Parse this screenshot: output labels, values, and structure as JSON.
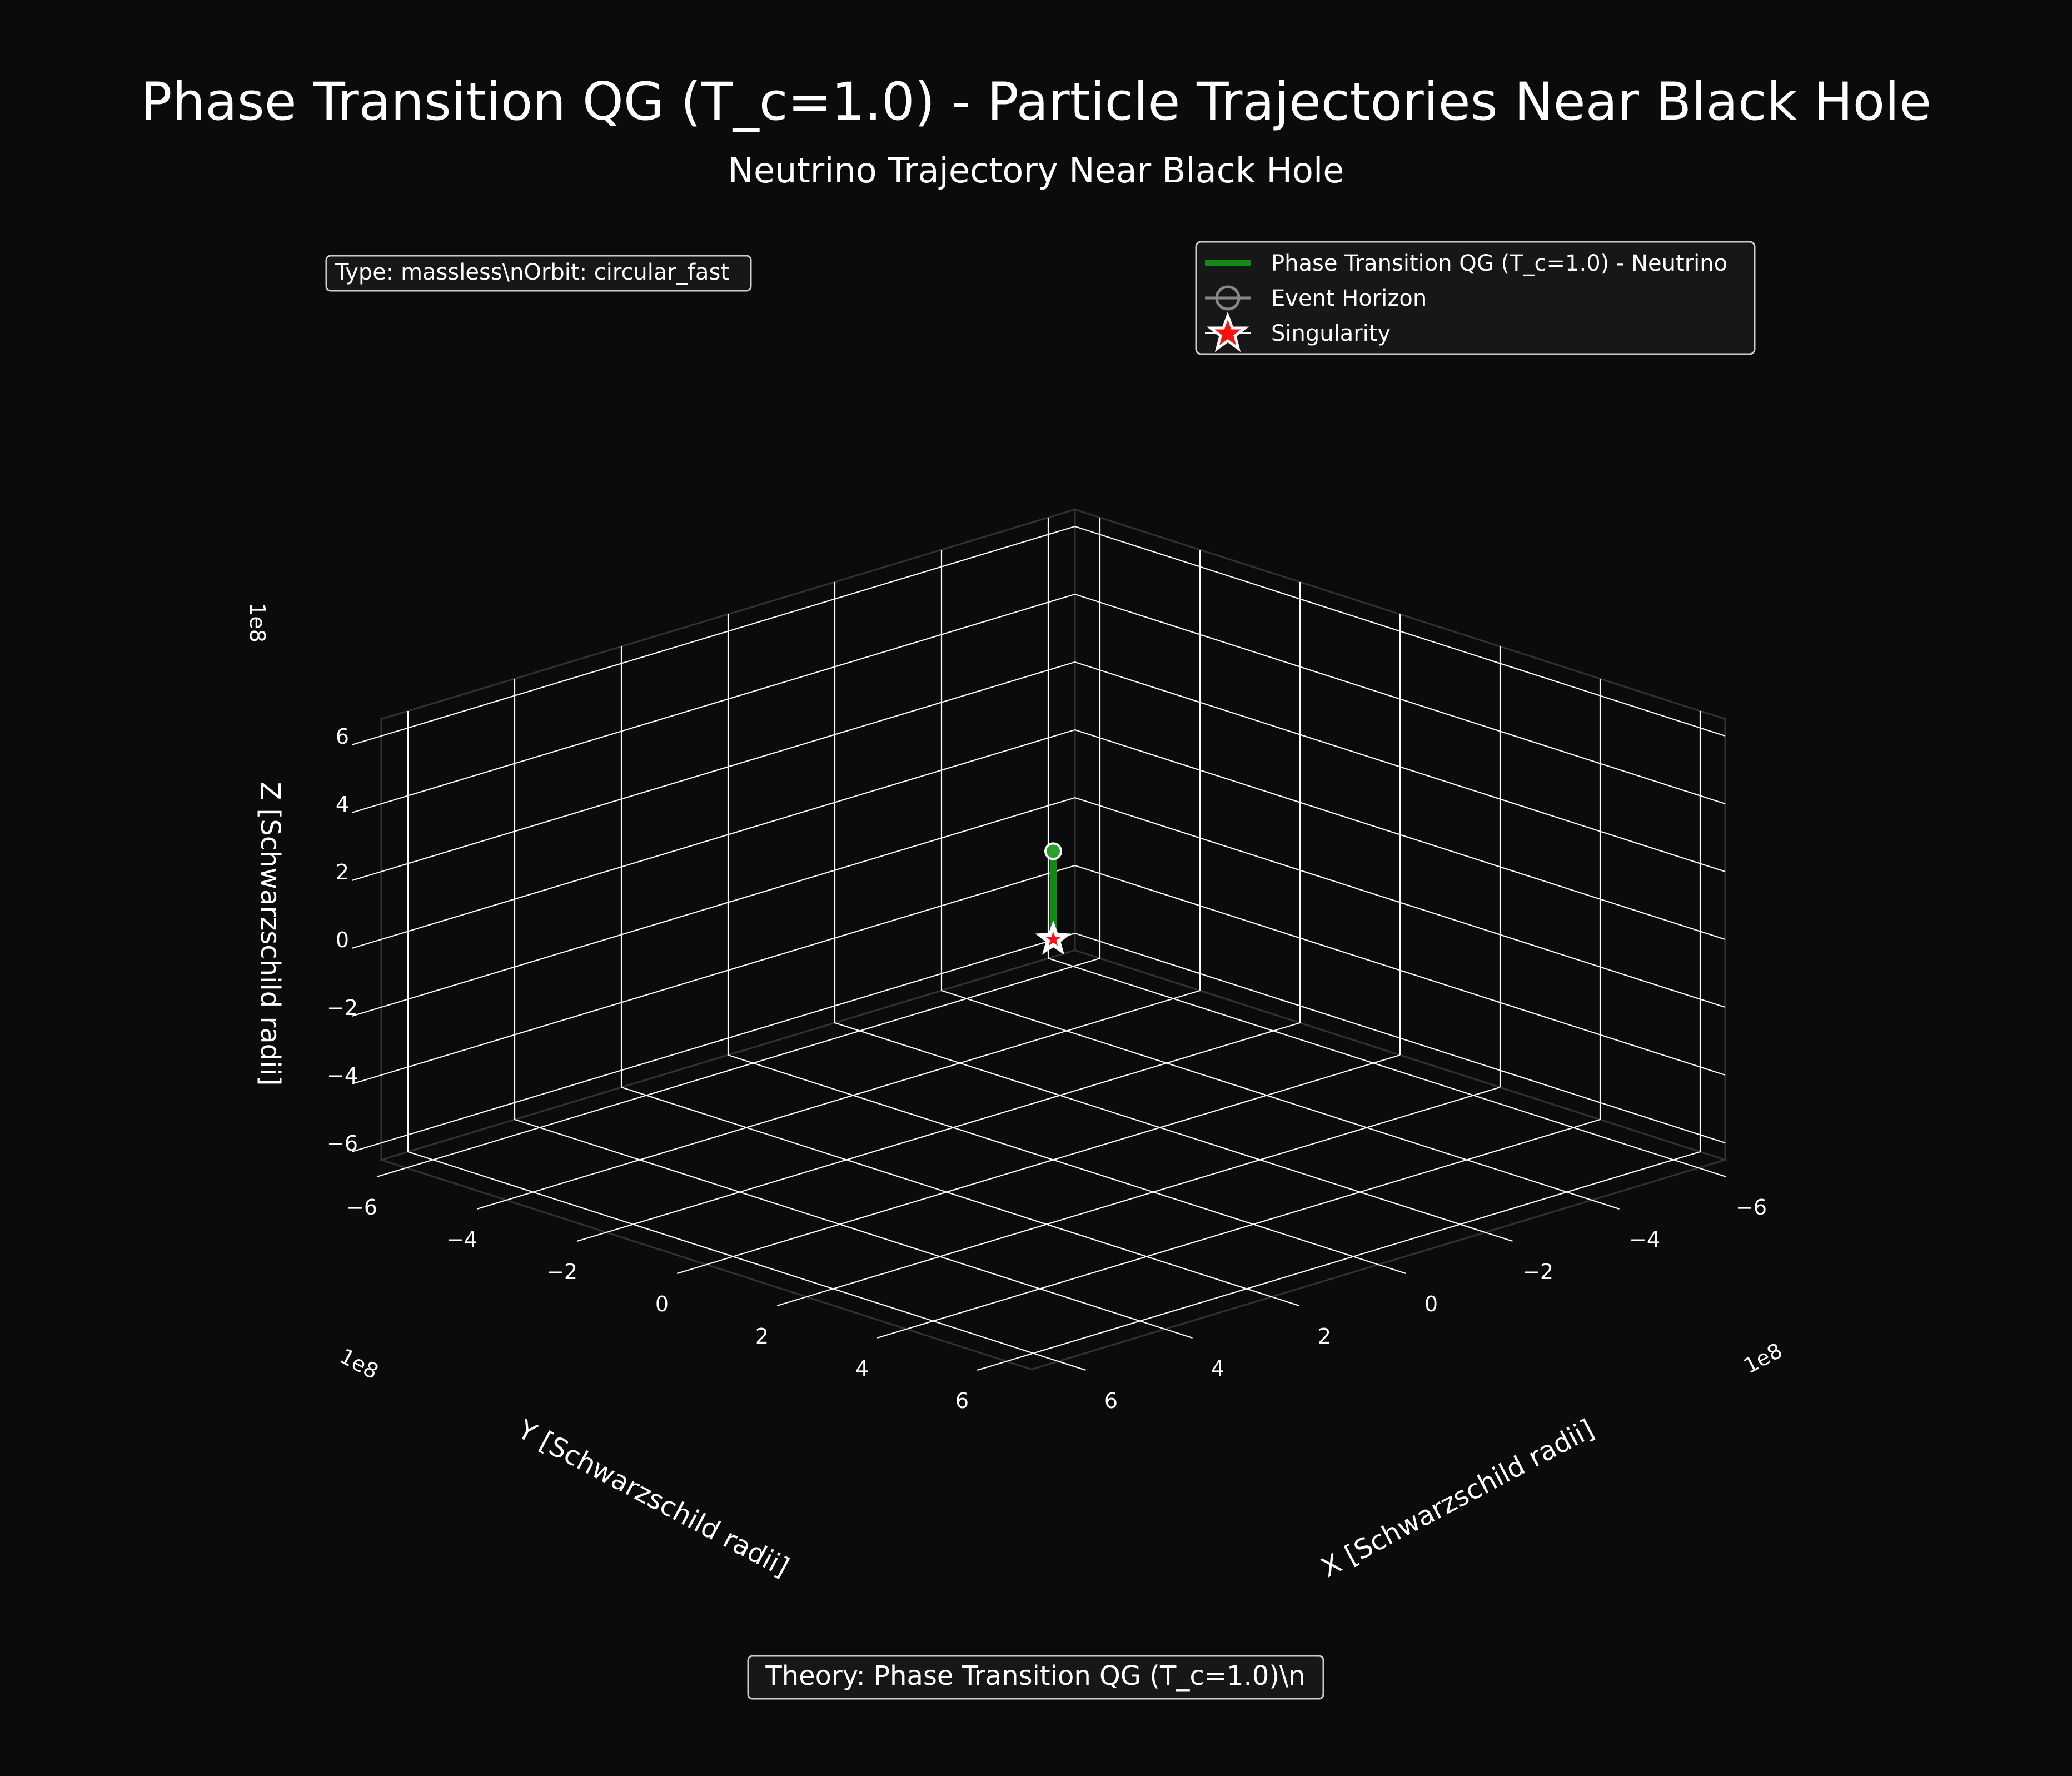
{
  "chart_data": {
    "type": "line3d",
    "title": "Phase Transition QG (T_c=1.0) - Particle Trajectories Near Black Hole",
    "subtitle": "Neutrino Trajectory Near Black Hole",
    "xlabel": "X [Schwarzschild radii]",
    "ylabel": "Y [Schwarzschild radii]",
    "zlabel": "Z [Schwarzschild radii]",
    "x_offset": "1e8",
    "y_offset": "1e8",
    "z_offset": "1e8",
    "xlim": [
      -6.5,
      6.5
    ],
    "ylim": [
      -6.5,
      6.5
    ],
    "zlim": [
      -6.5,
      6.5
    ],
    "x_ticks": [
      -6,
      -4,
      -2,
      0,
      2,
      4,
      6
    ],
    "y_ticks": [
      -6,
      -4,
      -2,
      0,
      2,
      4,
      6
    ],
    "z_ticks": [
      -6,
      -4,
      -2,
      0,
      2,
      4,
      6
    ],
    "x_tick_labels": [
      "−6",
      "−4",
      "−2",
      "0",
      "2",
      "4",
      "6"
    ],
    "y_tick_labels": [
      "−6",
      "−4",
      "−2",
      "0",
      "2",
      "4",
      "6"
    ],
    "z_tick_labels": [
      "−6",
      "−4",
      "−2",
      "0",
      "2",
      "4",
      "6"
    ],
    "grid": true,
    "legend_position": "top-right",
    "series": [
      {
        "name": "Phase Transition QG (T_c=1.0) - Neutrino",
        "color": "#138a13",
        "x": [
          0,
          0
        ],
        "y": [
          0,
          0
        ],
        "z": [
          0.25,
          2.6
        ]
      }
    ],
    "start_marker": {
      "x": 0,
      "y": 0,
      "z": 2.6,
      "color": "#2aa02a"
    },
    "event_horizon": {
      "name": "Event Horizon",
      "color": "#888888"
    },
    "singularity": {
      "name": "Singularity",
      "x": 0,
      "y": 0,
      "z": 0,
      "color": "#ff1010"
    },
    "info_box": "Type: massless\\nOrbit: circular_fast",
    "theory_box": "Theory: Phase Transition QG (T_c=1.0)\\n"
  },
  "colors": {
    "background": "#0b0b0b",
    "grid": "#ffffff",
    "text": "#ffffff",
    "legend_bg": "#171717"
  }
}
